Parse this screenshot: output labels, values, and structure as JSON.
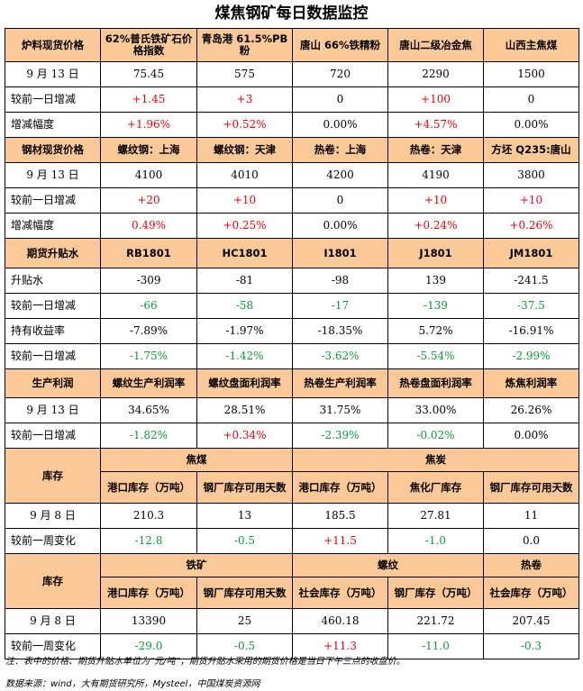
{
  "title": "煤焦钢矿每日数据监控",
  "s1": {
    "header": [
      "炉料现货价格",
      "62%普氏铁矿石价格指数",
      "青岛港 61.5%PB粉",
      "唐山 66%铁精粉",
      "唐山二级冶金焦",
      "山西主焦煤"
    ],
    "date_label": "9 月 13 日",
    "values": [
      "75.45",
      "575",
      "720",
      "2290",
      "1500"
    ],
    "chg_label": "较前一日增减",
    "chg": [
      "+1.45",
      "+3",
      "0",
      "+100",
      "0"
    ],
    "pct_label": "增减幅度",
    "pct": [
      "+1.96%",
      "+0.52%",
      "0.00%",
      "+4.57%",
      "0.00%"
    ]
  },
  "s2": {
    "header": [
      "钢材现货价格",
      "螺纹钢：上海",
      "螺纹钢：天津",
      "热卷：上海",
      "热卷：天津",
      "方坯 Q235:唐山"
    ],
    "date_label": "9 月 13 日",
    "values": [
      "4100",
      "4010",
      "4200",
      "4190",
      "3800"
    ],
    "chg_label": "较前一日增减",
    "chg": [
      "+20",
      "+10",
      "0",
      "+10",
      "+10"
    ],
    "pct_label": "增减幅度",
    "pct": [
      "0.49%",
      "+0.25%",
      "0.00%",
      "+0.24%",
      "+0.26%"
    ]
  },
  "s3": {
    "header": [
      "期货升贴水",
      "RB1801",
      "HC1801",
      "I1801",
      "J1801",
      "JM1801"
    ],
    "basis_label": "升贴水",
    "basis": [
      "-309",
      "-81",
      "-98",
      "139",
      "-241.5"
    ],
    "chg_label": "较前一日增减",
    "chg": [
      "-66",
      "-58",
      "-17",
      "-139",
      "-37.5"
    ],
    "yield_label": "持有收益率",
    "yield": [
      "-7.89%",
      "-1.97%",
      "-18.35%",
      "5.72%",
      "-16.91%"
    ],
    "ychg_label": "较前一日增减",
    "ychg": [
      "-1.75%",
      "-1.42%",
      "-3.62%",
      "-5.54%",
      "-2.99%"
    ]
  },
  "s4": {
    "header": [
      "生产利润",
      "螺纹生产利润率",
      "螺纹盘面利润率",
      "热卷生产利润率",
      "热卷盘面利润率",
      "炼焦利润率"
    ],
    "date_label": "9 月 13 日",
    "values": [
      "34.65%",
      "28.51%",
      "31.75%",
      "33.00%",
      "26.26%"
    ],
    "chg_label": "较前一日增减",
    "chg": [
      "-1.82%",
      "+0.34%",
      "-2.39%",
      "-0.02%",
      "0.00%"
    ]
  },
  "s5": {
    "title": "库存",
    "group1": "焦煤",
    "group2": "焦炭",
    "sub": [
      "港口库存（万吨）",
      "钢厂库存可用天数",
      "港口库存（万吨）",
      "焦化厂库存",
      "钢厂库存可用天数"
    ],
    "date_label": "9 月 8 日",
    "values": [
      "210.3",
      "13",
      "185.5",
      "27.81",
      "11"
    ],
    "chg_label": "较前一周变化",
    "chg": [
      "-12.8",
      "-0.5",
      "+11.5",
      "-1.0",
      "0.0"
    ]
  },
  "s6": {
    "title": "库存",
    "group1": "铁矿",
    "group2": "螺纹",
    "group3": "热卷",
    "sub": [
      "港口库存（万吨）",
      "钢厂库存可用天数",
      "社会库存（万吨）",
      "钢厂库存（万吨）",
      "社会库存（万吨）"
    ],
    "date_label": "9 月 8 日",
    "values": [
      "13390",
      "25",
      "460.18",
      "221.72",
      "207.45"
    ],
    "chg_label": "较前一周变化",
    "chg": [
      "-29.0",
      "-0.5",
      "+11.3",
      "-11.0",
      "-0.3"
    ]
  },
  "note": "注：表中的价格、期货升贴水单位为“元/吨”；期货升贴水采用的期货价格是当日下午三点的收盘价。",
  "source": "数据来源：wind，大有期货研究所，Mysteel，中国煤炭资源网",
  "colors": {
    "header_bg": "#fbc898",
    "up": "#e8000c",
    "down": "#0a9a3c"
  }
}
